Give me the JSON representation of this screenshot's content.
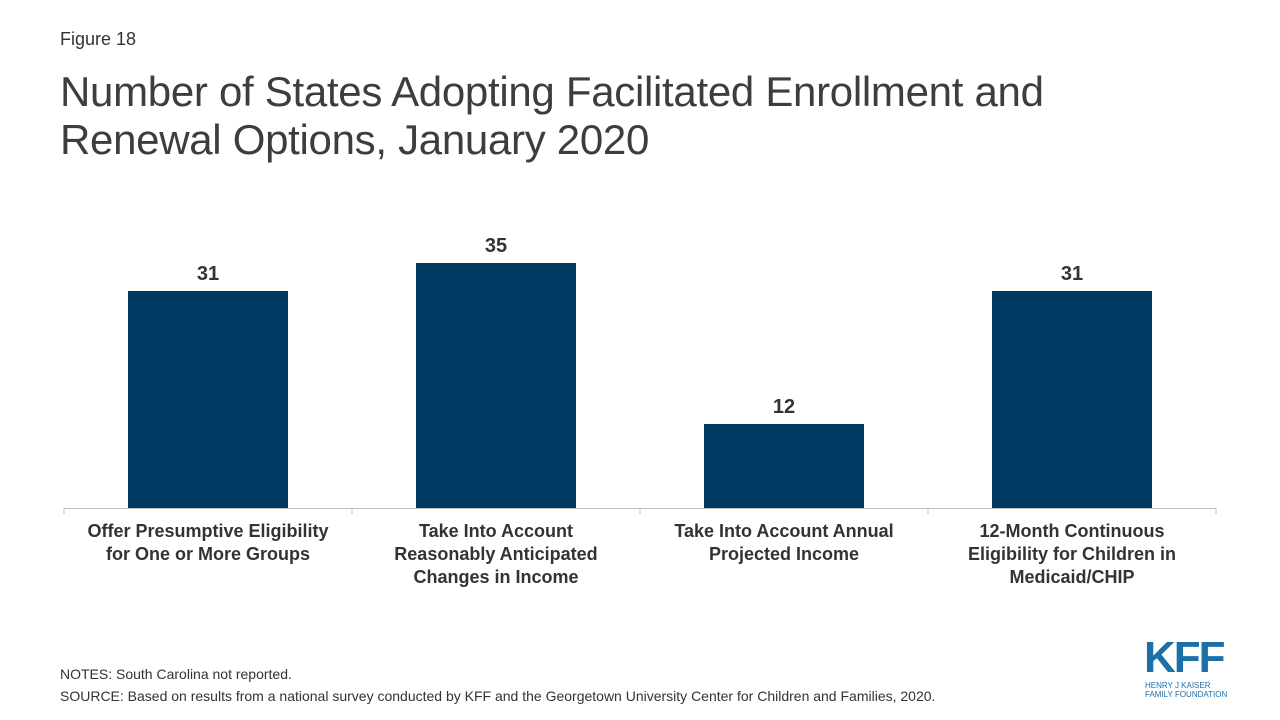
{
  "figure_label": "Figure 18",
  "title": "Number of States Adopting Facilitated Enrollment and Renewal Options, January 2020",
  "notes": "NOTES: South Carolina not reported.",
  "source": "SOURCE: Based on results from a national survey conducted by KFF and the Georgetown University Center for Children and Families, 2020.",
  "logo": {
    "mark": "KFF",
    "line1": "HENRY J KAISER",
    "line2": "FAMILY FOUNDATION"
  },
  "colors": {
    "bar": "#003a63",
    "axis": "#bfbfbf",
    "logo": "#1d6fa8"
  },
  "chart_data": {
    "type": "bar",
    "title": "Number of States Adopting Facilitated Enrollment and Renewal Options, January 2020",
    "xlabel": "",
    "ylabel": "",
    "categories": [
      [
        "Offer Presumptive Eligibility",
        "for One or More Groups"
      ],
      [
        "Take Into Account",
        "Reasonably Anticipated",
        "Changes in Income"
      ],
      [
        "Take Into Account Annual",
        "Projected Income"
      ],
      [
        "12-Month Continuous",
        "Eligibility for Children in",
        "Medicaid/CHIP"
      ]
    ],
    "values": [
      31,
      35,
      12,
      31
    ],
    "ylim": [
      0,
      42
    ],
    "grid": false,
    "legend": "none",
    "data_labels": true
  }
}
